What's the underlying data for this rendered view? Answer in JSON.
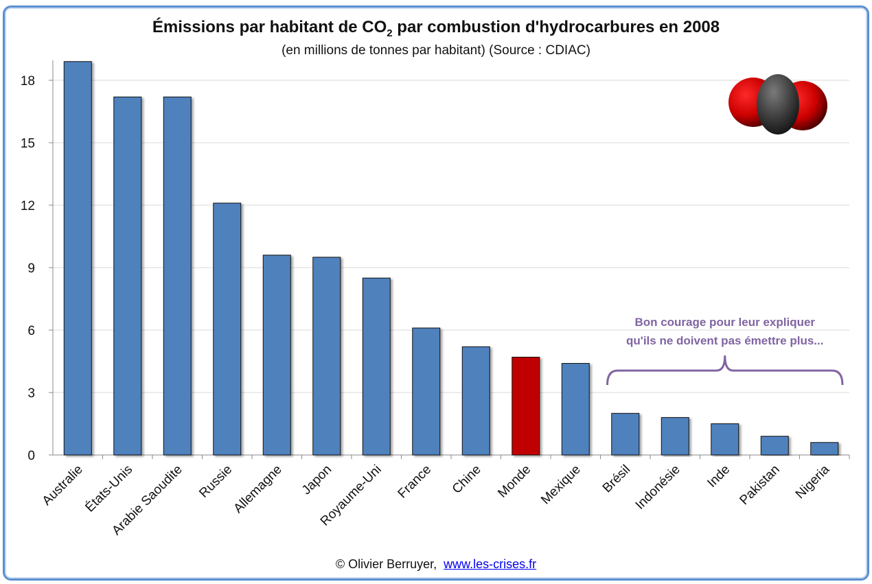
{
  "chart_data": {
    "type": "bar",
    "title": "Émissions par habitant de CO",
    "title_sub": "2",
    "title_end": " par combustion d'hydrocarbures en 2008",
    "subtitle": "(en millions de tonnes par habitant) (Source : CDIAC)",
    "categories": [
      "Australie",
      "États-Unis",
      "Arabie Saoudite",
      "Russie",
      "Allemagne",
      "Japon",
      "Royaume-Uni",
      "France",
      "Chine",
      "Monde",
      "Mexique",
      "Brésil",
      "Indonésie",
      "Inde",
      "Pakistan",
      "Nigeria"
    ],
    "values": [
      18.9,
      17.2,
      17.2,
      12.1,
      9.6,
      9.5,
      8.5,
      6.1,
      5.2,
      4.7,
      4.4,
      2.0,
      1.8,
      1.5,
      0.9,
      0.6
    ],
    "highlight": "Monde",
    "yticks": [
      0,
      3,
      6,
      9,
      12,
      15,
      18
    ],
    "ylim": [
      0,
      19
    ],
    "grid": true,
    "colors": {
      "bar": "#4F81BD",
      "highlight": "#C00000",
      "annotation": "#8064A2"
    },
    "annotation": {
      "lines": [
        "Bon courage pour leur expliquer",
        "qu'ils ne doivent pas émettre plus..."
      ],
      "spans": [
        "Brésil",
        "Nigeria"
      ]
    }
  },
  "footer": {
    "author": "© Olivier Berruyer,",
    "link": "www.les-crises.fr"
  },
  "decoration": {
    "icon": "co2-molecule-icon"
  }
}
